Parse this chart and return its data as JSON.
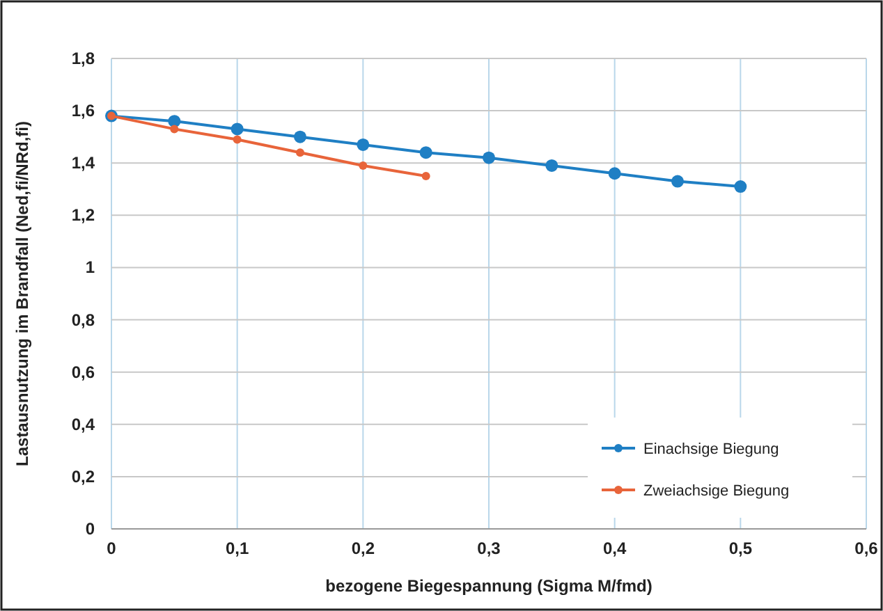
{
  "chart_data": {
    "type": "line",
    "xlabel": "bezogene Biegespannung (Sigma M/fmd)",
    "ylabel": "Lastausnutzung im Brandfall (Ned,fi/NRd,fi)",
    "x": [
      0,
      0.05,
      0.1,
      0.15,
      0.2,
      0.25,
      0.3,
      0.35,
      0.4,
      0.45,
      0.5
    ],
    "series": [
      {
        "name": "Einachsige Biegung",
        "color": "#1f7fc4",
        "values": [
          1.58,
          1.56,
          1.53,
          1.5,
          1.47,
          1.44,
          1.42,
          1.39,
          1.36,
          1.33,
          1.31
        ]
      },
      {
        "name": "Zweiachsige Biegung",
        "color": "#e8643a",
        "x": [
          0,
          0.05,
          0.1,
          0.15,
          0.2,
          0.25
        ],
        "values": [
          1.58,
          1.53,
          1.49,
          1.44,
          1.39,
          1.35
        ]
      }
    ],
    "xlim": [
      0,
      0.6
    ],
    "xticks": [
      0,
      {
        "value": 0.1,
        "label": "0,1"
      },
      {
        "value": 0.2,
        "label": "0,2"
      },
      {
        "value": 0.3,
        "label": "0,3"
      },
      {
        "value": 0.4,
        "label": "0,4"
      },
      {
        "value": 0.5,
        "label": "0,5"
      },
      {
        "value": 0.6,
        "label": "0,6"
      }
    ],
    "ylim": [
      0,
      1.8
    ],
    "yticks": [
      0,
      {
        "value": 0.2,
        "label": "0,2"
      },
      {
        "value": 0.4,
        "label": "0,4"
      },
      {
        "value": 0.6,
        "label": "0,6"
      },
      {
        "value": 0.8,
        "label": "0,8"
      },
      1,
      {
        "value": 1.2,
        "label": "1,2"
      },
      {
        "value": 1.4,
        "label": "1,4"
      },
      {
        "value": 1.6,
        "label": "1,6"
      },
      {
        "value": 1.8,
        "label": "1,8"
      }
    ],
    "grid": true,
    "legend": "bottom right",
    "marker": "circle",
    "line_style": "solid"
  }
}
